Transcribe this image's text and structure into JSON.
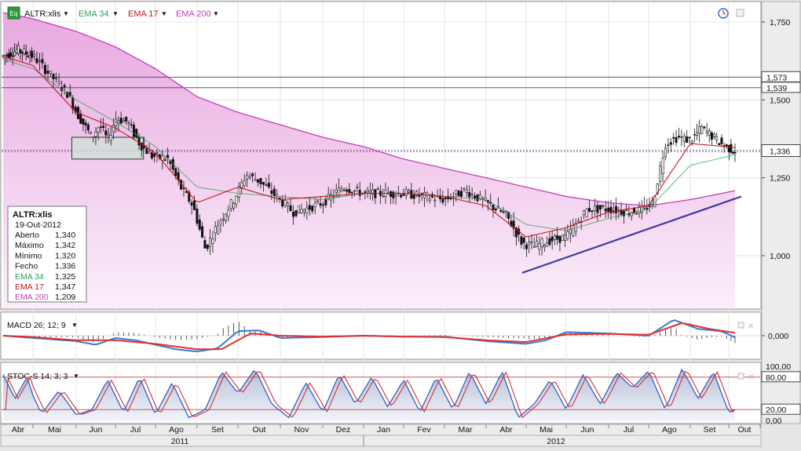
{
  "header": {
    "symbol_badge": "Eq",
    "symbol": "ALTR:xlis",
    "indicators": [
      {
        "label": "EMA 34",
        "color": "#2e9e5a"
      },
      {
        "label": "EMA 17",
        "color": "#c01818"
      },
      {
        "label": "EMA 200",
        "color": "#c040b8"
      }
    ],
    "dropdown_glyph": "▼"
  },
  "info_box": {
    "title": "ALTR:xlis",
    "date": "19-Out-2012",
    "rows": [
      {
        "label": "Aberto",
        "value": "1,340"
      },
      {
        "label": "Máximo",
        "value": "1,342"
      },
      {
        "label": "Mínimo",
        "value": "1,320"
      },
      {
        "label": "Fecho",
        "value": "1,336"
      },
      {
        "label": "EMA 34",
        "value": "1,325"
      },
      {
        "label": "EMA 17",
        "value": "1,347"
      },
      {
        "label": "EMA 200",
        "value": "1,209"
      }
    ]
  },
  "colors": {
    "ema34": "#2e9e5a",
    "ema17": "#c01818",
    "ema200": "#c040b8",
    "trendline": "#3a3aa0",
    "macd": "#3a7ad0",
    "signal": "#e03030",
    "stoch_k": "#3060c0",
    "stoch_d": "#d03030"
  },
  "chart_data": {
    "type": "candlestick",
    "symbol": "ALTR:xlis",
    "price_axis": {
      "ticks": [
        "1,750",
        "1,500",
        "1,250",
        "1,000"
      ],
      "ylim": [
        0.88,
        1.8
      ]
    },
    "horizontal_levels": [
      {
        "value": 1.573,
        "label": "1,573"
      },
      {
        "value": 1.539,
        "label": "1,539"
      }
    ],
    "last_price": {
      "value": 1.336,
      "label": "1,336"
    },
    "months": [
      "Abr",
      "Mai",
      "Jun",
      "Jul",
      "Ago",
      "Set",
      "Out",
      "Nov",
      "Dez",
      "Jan",
      "Fev",
      "Mar",
      "Abr",
      "Mai",
      "Jun",
      "Jul",
      "Ago",
      "Set",
      "Out"
    ],
    "years": [
      "2011",
      "2012"
    ],
    "price_path": [
      [
        0,
        1.64
      ],
      [
        0.5,
        1.66
      ],
      [
        1,
        1.64
      ],
      [
        1.4,
        1.58
      ],
      [
        1.8,
        1.52
      ],
      [
        2.0,
        1.46
      ],
      [
        2.4,
        1.38
      ],
      [
        2.6,
        1.42
      ],
      [
        2.8,
        1.37
      ],
      [
        3.0,
        1.44
      ],
      [
        3.3,
        1.43
      ],
      [
        3.6,
        1.36
      ],
      [
        3.9,
        1.32
      ],
      [
        4.3,
        1.31
      ],
      [
        4.6,
        1.22
      ],
      [
        4.9,
        1.16
      ],
      [
        5.2,
        1.02
      ],
      [
        5.5,
        1.1
      ],
      [
        5.9,
        1.18
      ],
      [
        6.2,
        1.26
      ],
      [
        6.5,
        1.24
      ],
      [
        6.9,
        1.19
      ],
      [
        7.3,
        1.14
      ],
      [
        7.6,
        1.15
      ],
      [
        8.0,
        1.17
      ],
      [
        8.5,
        1.22
      ],
      [
        9.0,
        1.2
      ],
      [
        9.5,
        1.2
      ],
      [
        10.0,
        1.2
      ],
      [
        10.5,
        1.19
      ],
      [
        11.0,
        1.18
      ],
      [
        11.5,
        1.21
      ],
      [
        12.0,
        1.17
      ],
      [
        12.5,
        1.13
      ],
      [
        12.9,
        1.04
      ],
      [
        13.2,
        1.03
      ],
      [
        13.6,
        1.05
      ],
      [
        14.0,
        1.06
      ],
      [
        14.5,
        1.15
      ],
      [
        15.0,
        1.15
      ],
      [
        15.5,
        1.14
      ],
      [
        15.9,
        1.15
      ],
      [
        16.1,
        1.17
      ],
      [
        16.4,
        1.36
      ],
      [
        16.7,
        1.38
      ],
      [
        17.0,
        1.37
      ],
      [
        17.3,
        1.41
      ],
      [
        17.6,
        1.38
      ],
      [
        17.9,
        1.35
      ],
      [
        18.2,
        1.336
      ]
    ],
    "ema34_path": [
      [
        0,
        1.63
      ],
      [
        1,
        1.6
      ],
      [
        2,
        1.5
      ],
      [
        3,
        1.43
      ],
      [
        4,
        1.35
      ],
      [
        5,
        1.22
      ],
      [
        6,
        1.2
      ],
      [
        7,
        1.19
      ],
      [
        8,
        1.18
      ],
      [
        9,
        1.2
      ],
      [
        10,
        1.2
      ],
      [
        11,
        1.19
      ],
      [
        12,
        1.18
      ],
      [
        13,
        1.1
      ],
      [
        14,
        1.08
      ],
      [
        15,
        1.12
      ],
      [
        16,
        1.15
      ],
      [
        17,
        1.29
      ],
      [
        18.2,
        1.325
      ]
    ],
    "ema17_path": [
      [
        0,
        1.64
      ],
      [
        1,
        1.61
      ],
      [
        2,
        1.46
      ],
      [
        3,
        1.41
      ],
      [
        4,
        1.33
      ],
      [
        5,
        1.17
      ],
      [
        6,
        1.22
      ],
      [
        7,
        1.18
      ],
      [
        8,
        1.19
      ],
      [
        9,
        1.2
      ],
      [
        10,
        1.2
      ],
      [
        11,
        1.19
      ],
      [
        12,
        1.16
      ],
      [
        13,
        1.06
      ],
      [
        14,
        1.09
      ],
      [
        15,
        1.14
      ],
      [
        16,
        1.16
      ],
      [
        17,
        1.36
      ],
      [
        18.2,
        1.347
      ]
    ],
    "ema200_path": [
      [
        0,
        1.78
      ],
      [
        1,
        1.76
      ],
      [
        2,
        1.72
      ],
      [
        3,
        1.67
      ],
      [
        4,
        1.6
      ],
      [
        5,
        1.51
      ],
      [
        6,
        1.46
      ],
      [
        7,
        1.42
      ],
      [
        8,
        1.38
      ],
      [
        9,
        1.35
      ],
      [
        10,
        1.31
      ],
      [
        11,
        1.28
      ],
      [
        12,
        1.25
      ],
      [
        13,
        1.22
      ],
      [
        14,
        1.19
      ],
      [
        15,
        1.17
      ],
      [
        16,
        1.16
      ],
      [
        17,
        1.18
      ],
      [
        18.2,
        1.209
      ]
    ],
    "trendline": [
      [
        12.9,
        0.945
      ],
      [
        18.4,
        1.19
      ]
    ],
    "consolidation_box": {
      "x": [
        1.9,
        3.7
      ],
      "y": [
        1.31,
        1.38
      ]
    },
    "macd": {
      "label": "MACD 26; 12; 9",
      "axis_tick": "0,000",
      "ylim": [
        -0.045,
        0.045
      ],
      "macd_path": [
        [
          0,
          0.0
        ],
        [
          1,
          -0.005
        ],
        [
          2,
          -0.012
        ],
        [
          2.5,
          -0.02
        ],
        [
          3,
          -0.005
        ],
        [
          3.5,
          -0.01
        ],
        [
          4,
          -0.02
        ],
        [
          4.5,
          -0.03
        ],
        [
          5,
          -0.035
        ],
        [
          5.5,
          -0.028
        ],
        [
          6,
          0.01
        ],
        [
          6.5,
          0.012
        ],
        [
          7,
          -0.005
        ],
        [
          8,
          -0.003
        ],
        [
          9,
          0.0
        ],
        [
          10,
          -0.002
        ],
        [
          11,
          -0.002
        ],
        [
          12,
          -0.012
        ],
        [
          13,
          -0.018
        ],
        [
          13.5,
          -0.01
        ],
        [
          14,
          0.008
        ],
        [
          15,
          0.005
        ],
        [
          16,
          0.0
        ],
        [
          16.6,
          0.035
        ],
        [
          17.2,
          0.015
        ],
        [
          17.8,
          0.01
        ],
        [
          18.2,
          -0.004
        ]
      ],
      "signal_path": [
        [
          0,
          0.0
        ],
        [
          1,
          -0.003
        ],
        [
          2,
          -0.01
        ],
        [
          3,
          -0.01
        ],
        [
          4,
          -0.018
        ],
        [
          5,
          -0.03
        ],
        [
          5.6,
          -0.03
        ],
        [
          6.3,
          0.005
        ],
        [
          7,
          0.0
        ],
        [
          8,
          -0.002
        ],
        [
          9,
          0.0
        ],
        [
          10,
          -0.002
        ],
        [
          11,
          -0.003
        ],
        [
          12,
          -0.01
        ],
        [
          13,
          -0.014
        ],
        [
          14,
          0.003
        ],
        [
          15,
          0.004
        ],
        [
          16,
          0.002
        ],
        [
          16.8,
          0.028
        ],
        [
          17.5,
          0.015
        ],
        [
          18.2,
          0.006
        ]
      ]
    },
    "stochastic": {
      "label": "STOC-S 14; 3; 3",
      "ticks": [
        "100,00",
        "80,00",
        "20,00",
        "0,00"
      ],
      "levels": [
        80,
        20
      ],
      "ylim": [
        0,
        100
      ],
      "k_path": [
        [
          0,
          85
        ],
        [
          0.4,
          40
        ],
        [
          0.8,
          80
        ],
        [
          1.2,
          12
        ],
        [
          1.6,
          55
        ],
        [
          2.0,
          10
        ],
        [
          2.4,
          20
        ],
        [
          2.8,
          75
        ],
        [
          3.2,
          15
        ],
        [
          3.6,
          80
        ],
        [
          4.0,
          10
        ],
        [
          4.4,
          70
        ],
        [
          4.8,
          5
        ],
        [
          5.2,
          20
        ],
        [
          5.6,
          90
        ],
        [
          6.0,
          50
        ],
        [
          6.4,
          95
        ],
        [
          6.8,
          30
        ],
        [
          7.2,
          5
        ],
        [
          7.6,
          70
        ],
        [
          8.0,
          15
        ],
        [
          8.4,
          85
        ],
        [
          8.8,
          30
        ],
        [
          9.2,
          80
        ],
        [
          9.6,
          25
        ],
        [
          10.0,
          75
        ],
        [
          10.4,
          15
        ],
        [
          10.8,
          80
        ],
        [
          11.2,
          20
        ],
        [
          11.6,
          90
        ],
        [
          12.0,
          30
        ],
        [
          12.4,
          90
        ],
        [
          12.8,
          5
        ],
        [
          13.2,
          30
        ],
        [
          13.6,
          75
        ],
        [
          14.0,
          20
        ],
        [
          14.4,
          85
        ],
        [
          14.8,
          30
        ],
        [
          15.2,
          88
        ],
        [
          15.6,
          60
        ],
        [
          16.0,
          92
        ],
        [
          16.4,
          20
        ],
        [
          16.8,
          95
        ],
        [
          17.2,
          40
        ],
        [
          17.6,
          90
        ],
        [
          18.0,
          15
        ],
        [
          18.2,
          20
        ]
      ]
    }
  }
}
